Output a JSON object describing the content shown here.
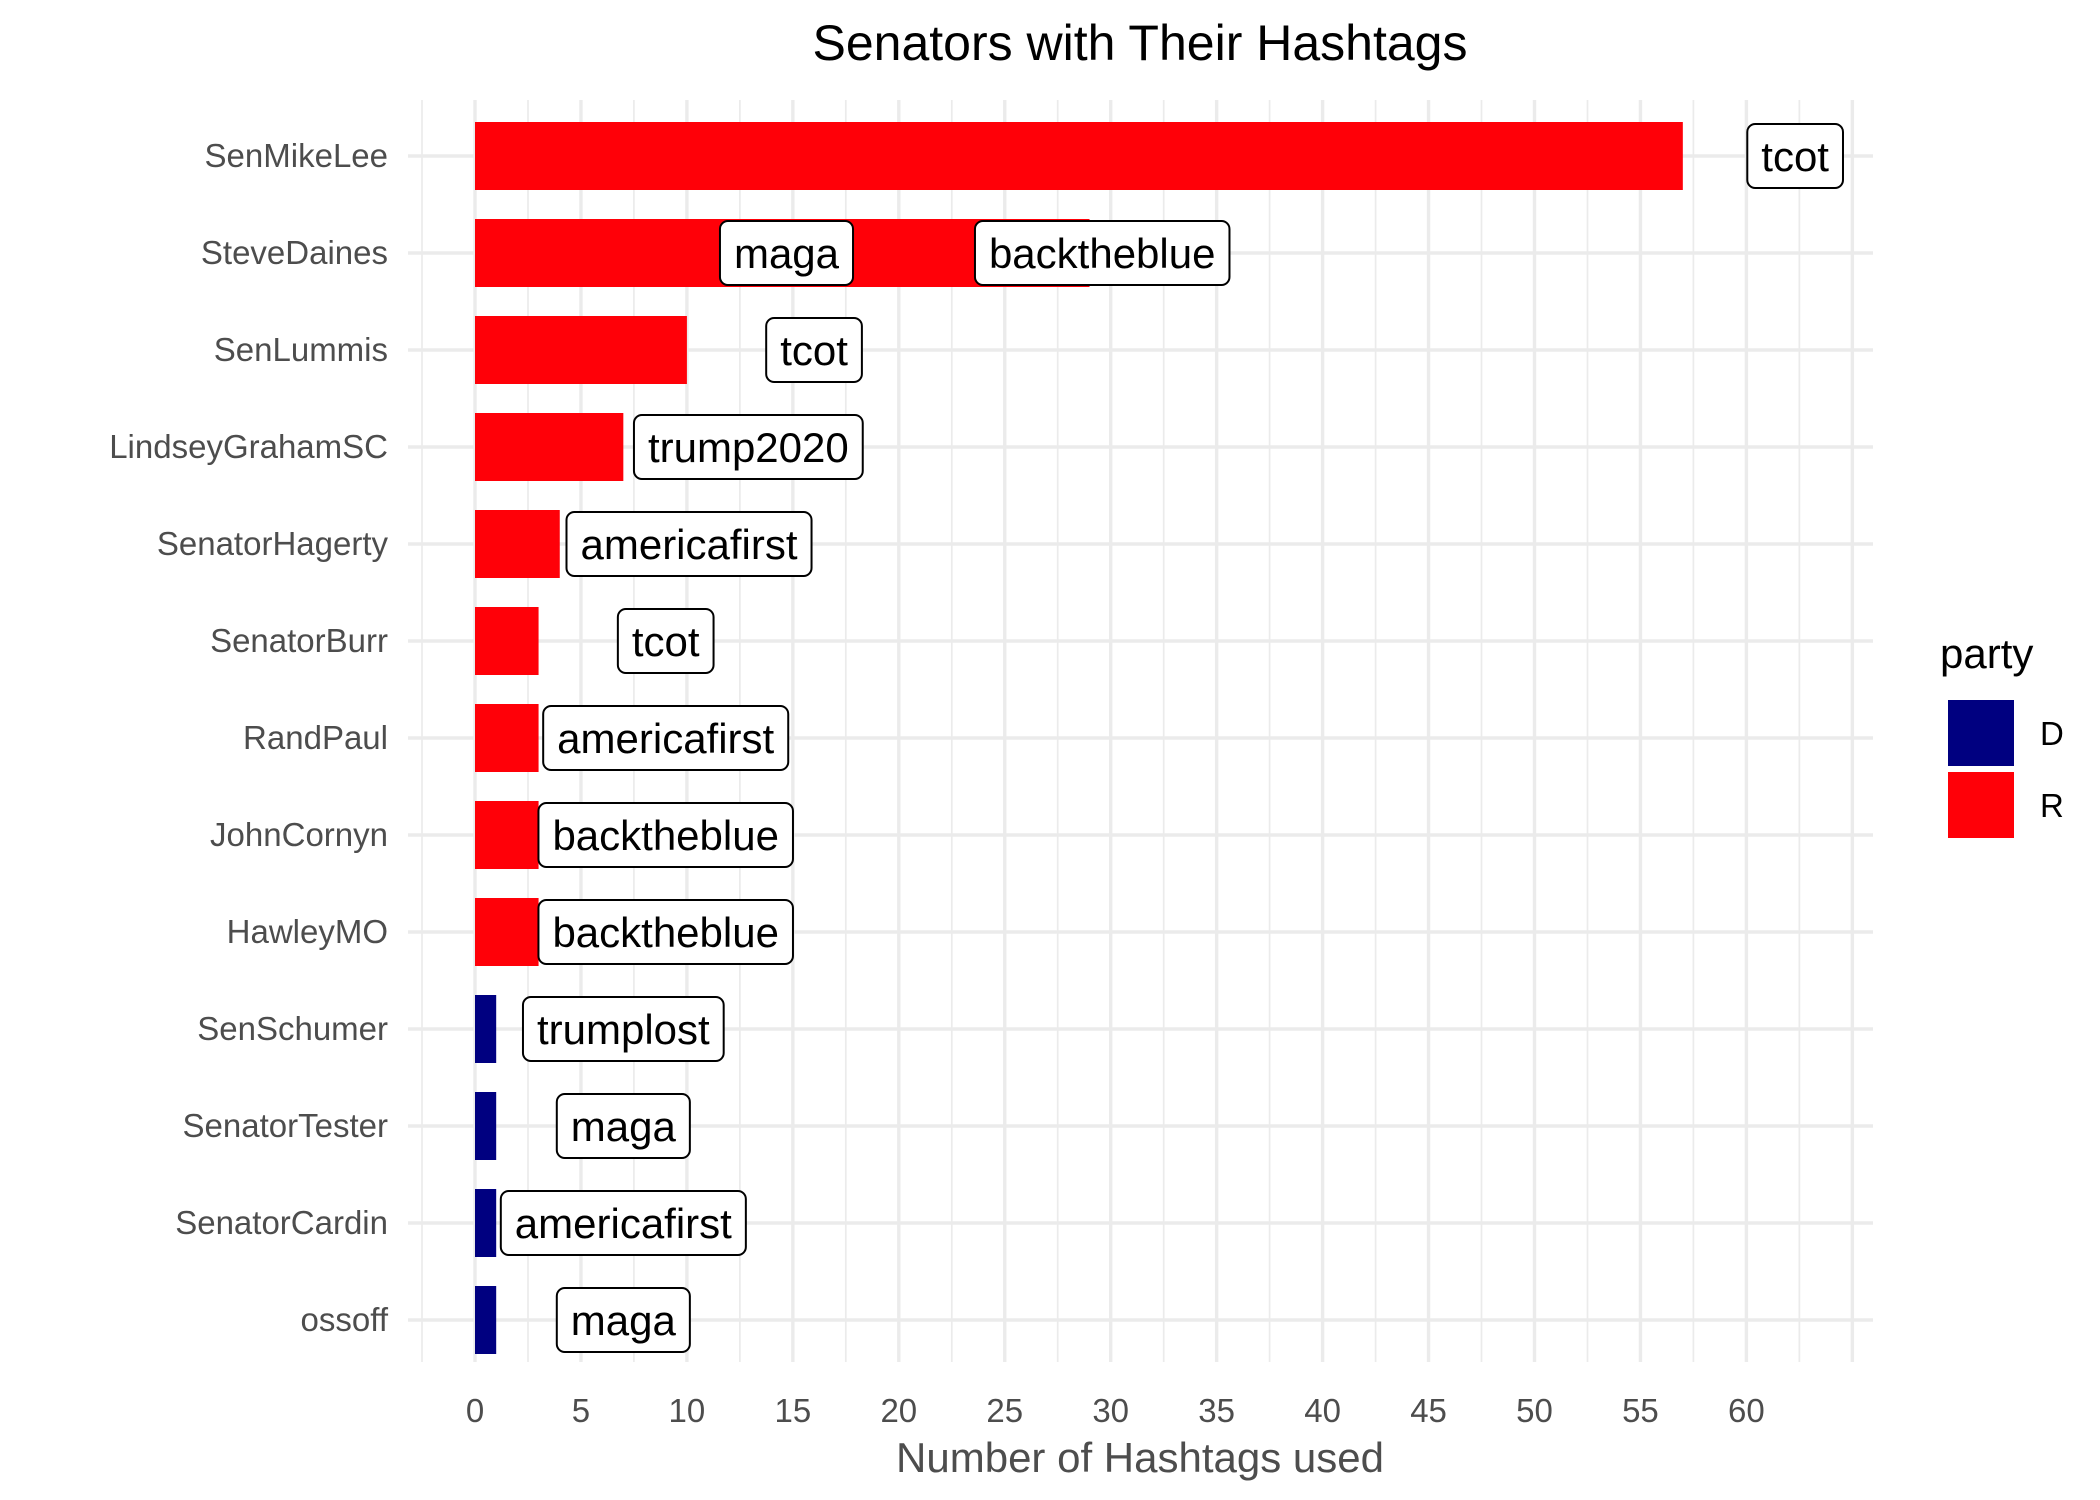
{
  "chart_data": {
    "type": "bar",
    "orientation": "horizontal",
    "title": "Senators with Their Hashtags",
    "xlabel": "Number of Hashtags used",
    "ylabel": "",
    "xlim": [
      -2.5,
      66
    ],
    "xticks": [
      "0",
      "5",
      "10",
      "15",
      "20",
      "25",
      "30",
      "35",
      "40",
      "45",
      "50",
      "55",
      "60"
    ],
    "grid": true,
    "legend": {
      "title": "party",
      "position": "right",
      "entries": [
        {
          "label": "D",
          "color": "#000080"
        },
        {
          "label": "R",
          "color": "#ff0008"
        }
      ]
    },
    "categories": [
      "SenMikeLee",
      "SteveDaines",
      "SenLummis",
      "LindseyGrahamSC",
      "SenatorHagerty",
      "SenatorBurr",
      "RandPaul",
      "JohnCornyn",
      "HawleyMO",
      "SenSchumer",
      "SenatorTester",
      "SenatorCardin",
      "ossoff"
    ],
    "values": [
      57,
      29,
      10,
      7,
      4,
      3,
      3,
      3,
      3,
      1,
      1,
      1,
      1
    ],
    "party": [
      "R",
      "R",
      "R",
      "R",
      "R",
      "R",
      "R",
      "R",
      "R",
      "D",
      "D",
      "D",
      "D"
    ],
    "labels": [
      {
        "category": "SenMikeLee",
        "text": "tcot",
        "x": 62.3
      },
      {
        "category": "SteveDaines",
        "text": "maga",
        "x": 14.7
      },
      {
        "category": "SteveDaines",
        "text": "backtheblue",
        "x": 29.6
      },
      {
        "category": "SenLummis",
        "text": "tcot",
        "x": 16
      },
      {
        "category": "LindseyGrahamSC",
        "text": "trump2020",
        "x": 12.9
      },
      {
        "category": "SenatorHagerty",
        "text": "americafirst",
        "x": 10.1
      },
      {
        "category": "SenatorBurr",
        "text": "tcot",
        "x": 9
      },
      {
        "category": "RandPaul",
        "text": "americafirst",
        "x": 9
      },
      {
        "category": "JohnCornyn",
        "text": "backtheblue",
        "x": 9
      },
      {
        "category": "HawleyMO",
        "text": "backtheblue",
        "x": 9
      },
      {
        "category": "SenSchumer",
        "text": "trumplost",
        "x": 7
      },
      {
        "category": "SenatorTester",
        "text": "maga",
        "x": 7
      },
      {
        "category": "SenatorCardin",
        "text": "americafirst",
        "x": 7
      },
      {
        "category": "ossoff",
        "text": "maga",
        "x": 7
      }
    ]
  }
}
